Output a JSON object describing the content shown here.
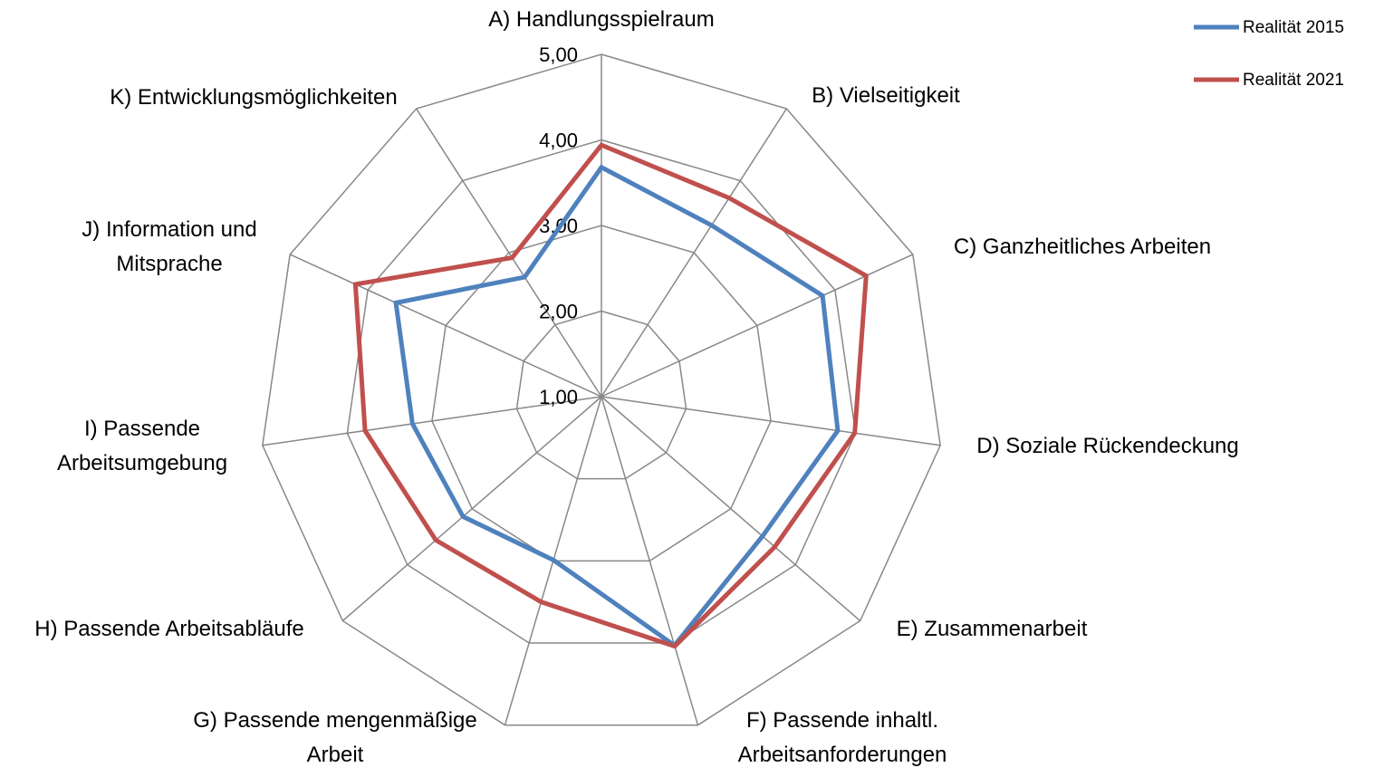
{
  "chart_data": {
    "type": "radar",
    "categories": [
      "A) Handlungsspielraum",
      "B) Vielseitigkeit",
      "C) Ganzheitliches Arbeiten",
      "D) Soziale Rückendeckung",
      "E) Zusammenarbeit",
      "F) Passende inhaltl. Arbeitsanforderungen",
      "G) Passende mengenmäßige Arbeit",
      "H) Passende Arbeitsabläufe",
      "I) Passende Arbeitsumgebung",
      "J) Information und Mitsprache",
      "K) Entwicklungsmöglichkeiten"
    ],
    "series": [
      {
        "name": "Realität 2015",
        "color": "#4f81bd",
        "values": [
          3.68,
          3.38,
          3.84,
          3.79,
          3.49,
          4.03,
          2.99,
          3.14,
          3.23,
          3.64,
          2.66
        ]
      },
      {
        "name": "Realität 2021",
        "color": "#c0504d",
        "values": [
          3.94,
          3.76,
          4.4,
          3.99,
          3.68,
          4.04,
          3.5,
          3.56,
          3.79,
          4.16,
          2.93
        ]
      }
    ],
    "rlim": [
      1,
      5
    ],
    "rticks": [
      {
        "value": 1,
        "label": "1,00"
      },
      {
        "value": 2,
        "label": "2,00"
      },
      {
        "value": 3,
        "label": "3,00"
      },
      {
        "value": 4,
        "label": "4,00"
      },
      {
        "value": 5,
        "label": "5,00"
      }
    ],
    "grid": true,
    "legend": "top-right"
  }
}
